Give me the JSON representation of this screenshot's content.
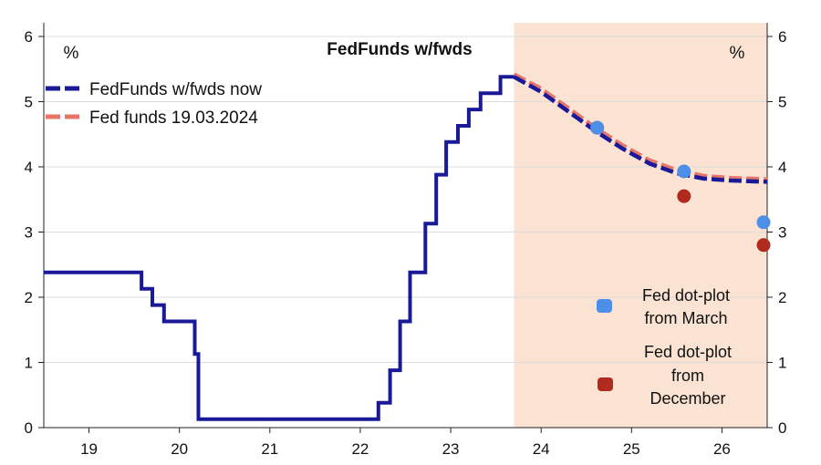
{
  "chart_data": {
    "type": "line",
    "title": "FedFunds w/fwds",
    "y_unit_left": "%",
    "y_unit_right": "%",
    "ylim": [
      0,
      6
    ],
    "y_ticks": [
      "0",
      "1",
      "2",
      "3",
      "4",
      "5",
      "6"
    ],
    "x_tick_labels": [
      "19",
      "20",
      "21",
      "22",
      "23",
      "24",
      "25",
      "26"
    ],
    "xlim": [
      2018.5,
      2026.5
    ],
    "grid": true,
    "shaded_region": {
      "x_from": 2023.7,
      "x_to": 2026.5,
      "color": "#fae3d2"
    },
    "legend": {
      "placement": "top-left",
      "items": [
        {
          "label": "FedFunds w/fwds now",
          "color": "#1a1a99",
          "style": "dashed"
        },
        {
          "label": "Fed funds 19.03.2024",
          "color": "#e87568",
          "style": "dashed"
        }
      ]
    },
    "series": [
      {
        "name": "FedFunds w/fwds now",
        "color": "#1a1a99",
        "line": "step",
        "points": [
          [
            2018.5,
            2.38
          ],
          [
            2019.58,
            2.38
          ],
          [
            2019.58,
            2.13
          ],
          [
            2019.7,
            2.13
          ],
          [
            2019.7,
            1.88
          ],
          [
            2019.83,
            1.88
          ],
          [
            2019.83,
            1.63
          ],
          [
            2020.17,
            1.63
          ],
          [
            2020.17,
            1.13
          ],
          [
            2020.21,
            1.13
          ],
          [
            2020.21,
            0.13
          ],
          [
            2022.2,
            0.13
          ],
          [
            2022.2,
            0.38
          ],
          [
            2022.33,
            0.38
          ],
          [
            2022.33,
            0.88
          ],
          [
            2022.44,
            0.88
          ],
          [
            2022.44,
            1.63
          ],
          [
            2022.55,
            1.63
          ],
          [
            2022.55,
            2.38
          ],
          [
            2022.72,
            2.38
          ],
          [
            2022.72,
            3.13
          ],
          [
            2022.84,
            3.13
          ],
          [
            2022.84,
            3.88
          ],
          [
            2022.95,
            3.88
          ],
          [
            2022.95,
            4.38
          ],
          [
            2023.08,
            4.38
          ],
          [
            2023.08,
            4.63
          ],
          [
            2023.2,
            4.63
          ],
          [
            2023.2,
            4.88
          ],
          [
            2023.33,
            4.88
          ],
          [
            2023.33,
            5.13
          ],
          [
            2023.55,
            5.13
          ],
          [
            2023.55,
            5.38
          ],
          [
            2023.7,
            5.38
          ]
        ]
      },
      {
        "name": "FedFunds w/fwds now",
        "color": "#1a1a99",
        "line": "dashed",
        "points": [
          [
            2023.7,
            5.38
          ],
          [
            2024.0,
            5.15
          ],
          [
            2024.3,
            4.85
          ],
          [
            2024.6,
            4.55
          ],
          [
            2024.9,
            4.28
          ],
          [
            2025.2,
            4.05
          ],
          [
            2025.5,
            3.9
          ],
          [
            2025.8,
            3.82
          ],
          [
            2026.1,
            3.79
          ],
          [
            2026.5,
            3.77
          ]
        ]
      },
      {
        "name": "Fed funds 19.03.2024",
        "color": "#e87568",
        "line": "dashed",
        "points": [
          [
            2023.7,
            5.42
          ],
          [
            2024.0,
            5.2
          ],
          [
            2024.3,
            4.9
          ],
          [
            2024.6,
            4.6
          ],
          [
            2024.9,
            4.33
          ],
          [
            2025.2,
            4.1
          ],
          [
            2025.5,
            3.95
          ],
          [
            2025.8,
            3.86
          ],
          [
            2026.1,
            3.83
          ],
          [
            2026.5,
            3.81
          ]
        ]
      }
    ],
    "dot_series": [
      {
        "label_lines": [
          "Fed dot-plot",
          "from March"
        ],
        "color": "#4d8ee8",
        "points": [
          [
            2024.62,
            4.6
          ],
          [
            2025.58,
            3.93
          ],
          [
            2026.46,
            3.15
          ]
        ]
      },
      {
        "label_lines": [
          "Fed dot-plot",
          "from",
          "December"
        ],
        "color": "#b02a1e",
        "points": [
          [
            2024.62,
            4.6
          ],
          [
            2025.58,
            3.55
          ],
          [
            2026.46,
            2.8
          ]
        ]
      }
    ]
  }
}
